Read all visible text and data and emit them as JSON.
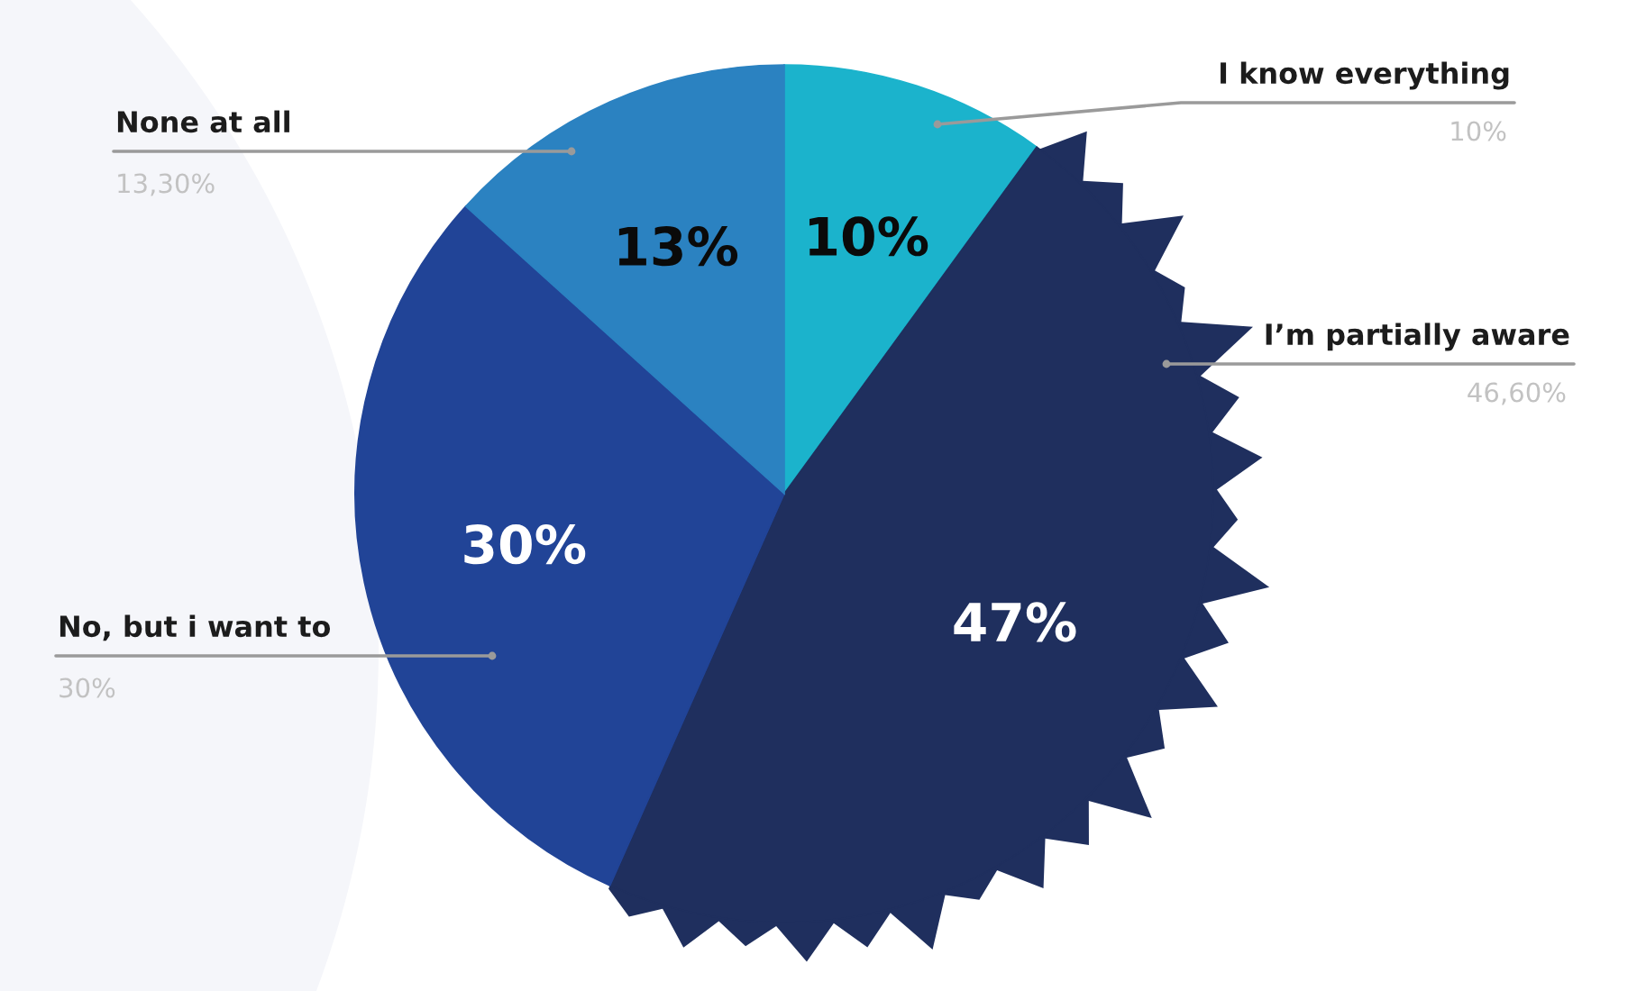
{
  "chart_data": {
    "type": "pie",
    "categories": [
      "I know everything",
      "I’m partially aware",
      "No, but i want to",
      "None at all"
    ],
    "values": [
      10,
      46.6,
      30,
      13.3
    ],
    "colors": [
      "#1bb3cc",
      "#1f2f5e",
      "#214497",
      "#2b82c1"
    ],
    "value_labels": [
      "10%",
      "47%",
      "30%",
      "13%"
    ],
    "annotations": [
      {
        "text": "10%",
        "x": "I know everything"
      },
      {
        "text": "46,60%",
        "x": "I’m partially aware"
      },
      {
        "text": "30%",
        "x": "No, but i want to"
      },
      {
        "text": "13,30%",
        "x": "None at all"
      }
    ]
  }
}
